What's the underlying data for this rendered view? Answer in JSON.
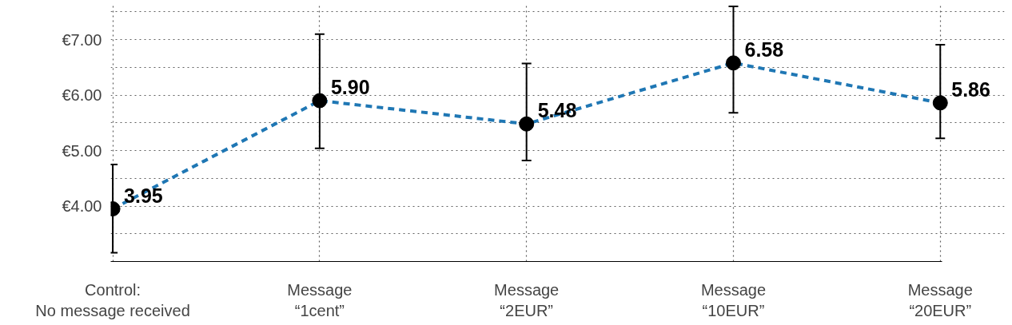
{
  "chart_data": {
    "type": "line",
    "categories": [
      "Control:\nNo message received",
      "Message\n“1cent”",
      "Message\n“2EUR”",
      "Message\n“10EUR”",
      "Message\n“20EUR”"
    ],
    "series": [
      {
        "color": "#1f77b4",
        "values": [
          3.95,
          5.9,
          5.48,
          6.58,
          5.86
        ],
        "errors": [
          [
            3.16,
            4.75
          ],
          [
            5.04,
            7.1
          ],
          [
            4.82,
            6.57
          ],
          [
            5.68,
            7.6
          ],
          [
            5.22,
            6.91
          ]
        ]
      }
    ],
    "ylim": [
      3,
      7.65
    ],
    "yticks": [
      {
        "value": 3,
        "label": null
      },
      {
        "value": 3.5,
        "label": null
      },
      {
        "value": 4,
        "label": "€4.00"
      },
      {
        "value": 4.5,
        "label": null
      },
      {
        "value": 5,
        "label": "€5.00"
      },
      {
        "value": 5.5,
        "label": null
      },
      {
        "value": 6,
        "label": "€6.00"
      },
      {
        "value": 6.5,
        "label": null
      },
      {
        "value": 7,
        "label": "€7.00"
      },
      {
        "value": 7.5,
        "label": null
      }
    ],
    "grid": true,
    "marker": "circle",
    "line_style": "dashed",
    "value_labels": [
      "3.95",
      "5.90",
      "5.48",
      "6.58",
      "5.86"
    ]
  }
}
